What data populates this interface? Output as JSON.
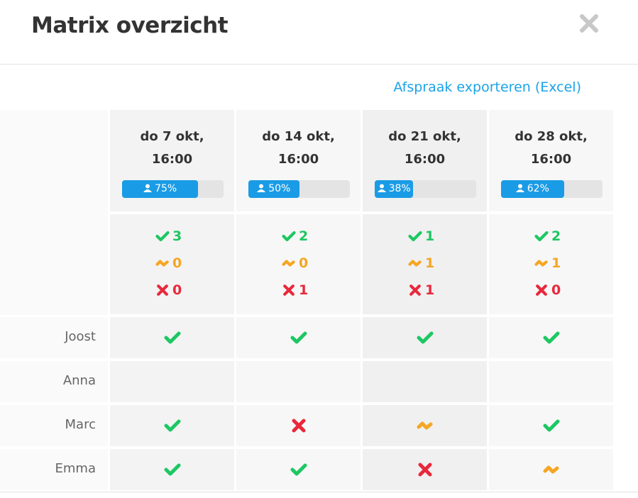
{
  "header": {
    "title": "Matrix overzicht"
  },
  "export_link": "Afspraak exporteren (Excel)",
  "columns": [
    {
      "date": "do 7 okt,",
      "time": "16:00",
      "attendance": {
        "value": 75,
        "label": "75%"
      },
      "counts": {
        "yes": 3,
        "maybe": 0,
        "no": 0
      }
    },
    {
      "date": "do 14 okt,",
      "time": "16:00",
      "attendance": {
        "value": 50,
        "label": "50%"
      },
      "counts": {
        "yes": 2,
        "maybe": 0,
        "no": 1
      }
    },
    {
      "date": "do 21 okt,",
      "time": "16:00",
      "attendance": {
        "value": 38,
        "label": "38%"
      },
      "counts": {
        "yes": 1,
        "maybe": 1,
        "no": 1
      }
    },
    {
      "date": "do 28 okt,",
      "time": "16:00",
      "attendance": {
        "value": 62,
        "label": "62%"
      },
      "counts": {
        "yes": 2,
        "maybe": 1,
        "no": 0
      }
    }
  ],
  "rows": [
    {
      "name": "Joost",
      "responses": [
        "yes",
        "yes",
        "yes",
        "yes"
      ]
    },
    {
      "name": "Anna",
      "responses": [
        null,
        null,
        null,
        null
      ]
    },
    {
      "name": "Marc",
      "responses": [
        "yes",
        "no",
        "maybe",
        "yes"
      ]
    },
    {
      "name": "Emma",
      "responses": [
        "yes",
        "yes",
        "no",
        "maybe"
      ]
    }
  ]
}
